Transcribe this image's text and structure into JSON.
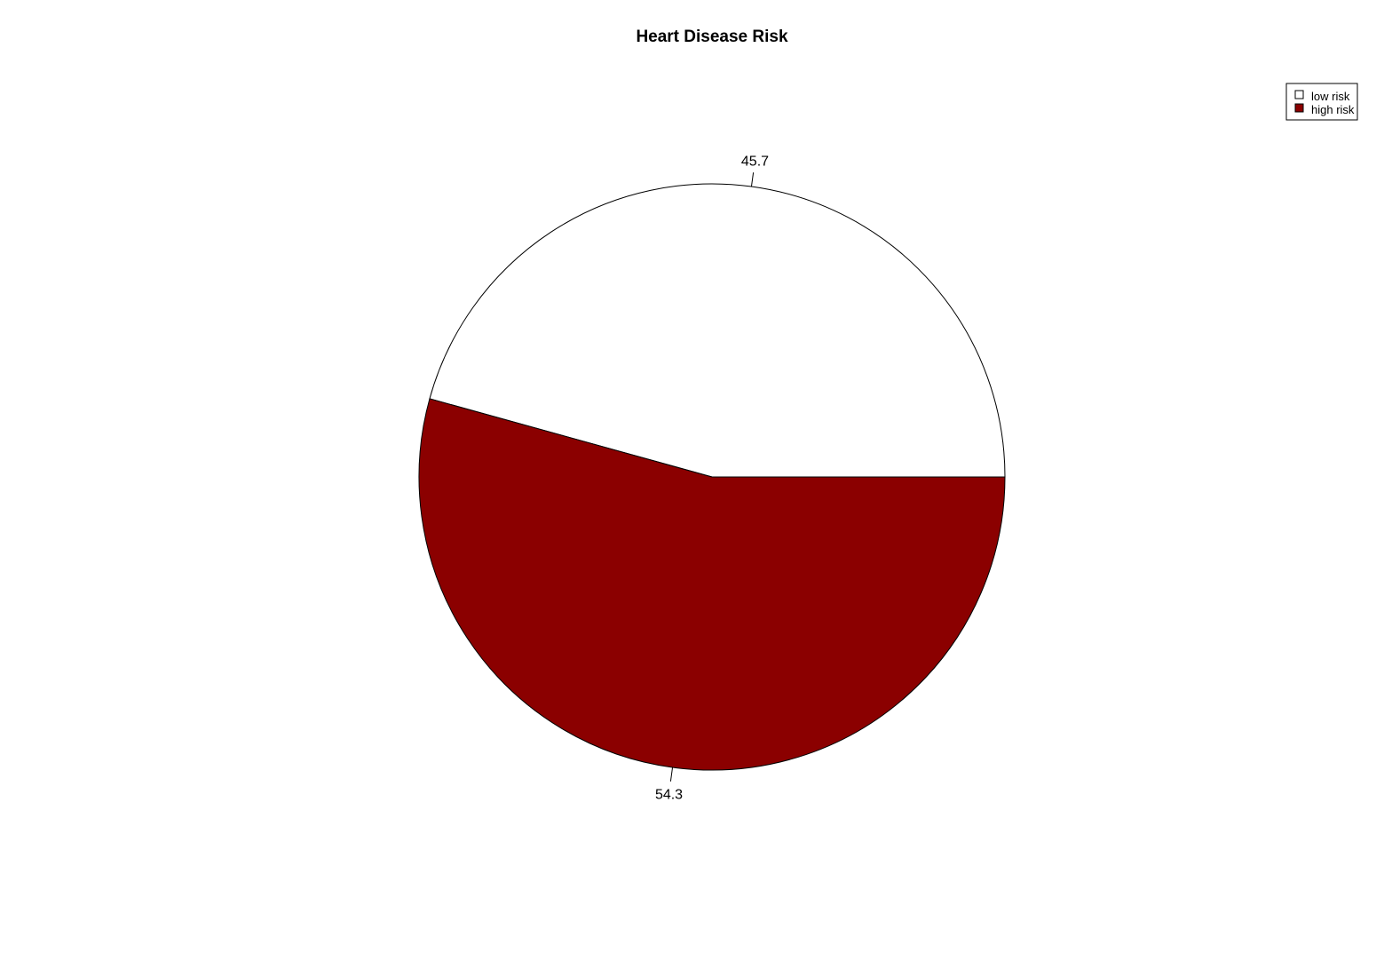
{
  "chart_data": {
    "type": "pie",
    "title": "Heart Disease Risk",
    "categories": [
      "low risk",
      "high risk"
    ],
    "values": [
      45.7,
      54.3
    ],
    "labels": [
      "45.7",
      "54.3"
    ],
    "colors": [
      "#ffffff",
      "#8b0000"
    ],
    "border_color": "#000000",
    "start_angle_deg": 0,
    "direction": "counterclockwise",
    "legend": {
      "position": "top-right",
      "entries": [
        "low risk",
        "high risk"
      ]
    }
  }
}
